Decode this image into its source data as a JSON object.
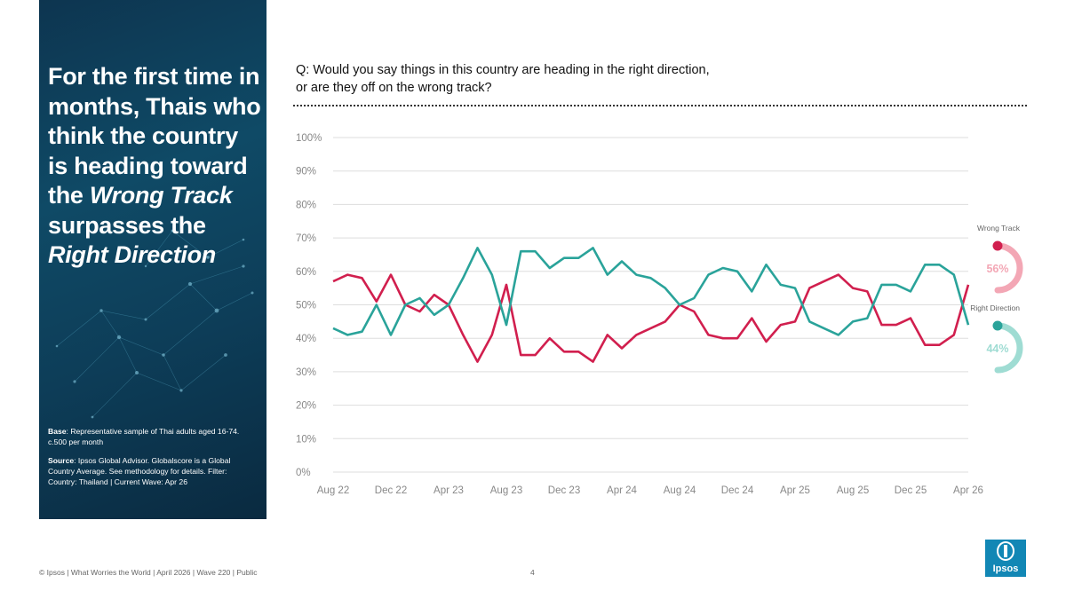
{
  "headline": {
    "part1": "For the first time in months, Thais who think the country is heading toward the ",
    "em1": "Wrong Track",
    "part2": " surpasses the ",
    "em2": "Right Direction"
  },
  "notes": {
    "base_label": "Base",
    "base_text": ": Representative sample of Thai adults aged 16-74. c.500 per month",
    "source_label": "Source",
    "source_text": ": Ipsos Global Advisor. Globalscore is a Global Country Average. See methodology for details. Filter: Country: Thailand | Current Wave: Apr 26"
  },
  "question": {
    "line1": "Q: Would you say things in this country are heading in the right direction,",
    "line2": "or are they off on the wrong track?"
  },
  "footer": "© Ipsos | What Worries the World | April 2026 | Wave 220 | Public",
  "page_number": "4",
  "logo_text": "Ipsos",
  "chart_data": {
    "type": "line",
    "ylim": [
      0,
      100
    ],
    "yticks": [
      "0%",
      "10%",
      "20%",
      "30%",
      "40%",
      "50%",
      "60%",
      "70%",
      "80%",
      "90%",
      "100%"
    ],
    "x_tick_labels": [
      "Aug 22",
      "Dec 22",
      "Apr 23",
      "Aug 23",
      "Dec 23",
      "Apr 24",
      "Aug 24",
      "Dec 24",
      "Apr 25",
      "Aug 25",
      "Dec 25",
      "Apr 26"
    ],
    "x": [
      "Aug 22",
      "Sep 22",
      "Oct 22",
      "Nov 22",
      "Dec 22",
      "Jan 23",
      "Feb 23",
      "Mar 23",
      "Apr 23",
      "May 23",
      "Jun 23",
      "Jul 23",
      "Aug 23",
      "Sep 23",
      "Oct 23",
      "Nov 23",
      "Dec 23",
      "Jan 24",
      "Feb 24",
      "Mar 24",
      "Apr 24",
      "May 24",
      "Jun 24",
      "Jul 24",
      "Aug 24",
      "Sep 24",
      "Oct 24",
      "Nov 24",
      "Dec 24",
      "Jan 25",
      "Feb 25",
      "Mar 25",
      "Apr 25",
      "May 25",
      "Jun 25",
      "Jul 25",
      "Aug 25",
      "Sep 25",
      "Oct 25",
      "Nov 25",
      "Dec 25",
      "Jan 26",
      "Feb 26",
      "Mar 26",
      "Apr 26"
    ],
    "grid": true,
    "series": [
      {
        "name": "Wrong Track",
        "color": "#d11f4e",
        "end_label": "56%",
        "values": [
          57,
          59,
          58,
          51,
          59,
          50,
          48,
          53,
          50,
          41,
          33,
          41,
          56,
          35,
          35,
          40,
          36,
          36,
          33,
          41,
          37,
          41,
          43,
          45,
          50,
          48,
          41,
          40,
          40,
          46,
          39,
          44,
          45,
          55,
          57,
          59,
          55,
          54,
          44,
          44,
          46,
          38,
          38,
          41,
          56
        ]
      },
      {
        "name": "Right Direction",
        "color": "#2aa39a",
        "end_label": "44%",
        "values": [
          43,
          41,
          42,
          50,
          41,
          50,
          52,
          47,
          50,
          58,
          67,
          59,
          44,
          66,
          66,
          61,
          64,
          64,
          67,
          59,
          63,
          59,
          58,
          55,
          50,
          52,
          59,
          61,
          60,
          54,
          62,
          56,
          55,
          45,
          43,
          41,
          45,
          46,
          56,
          56,
          54,
          62,
          62,
          59,
          44
        ]
      }
    ]
  }
}
